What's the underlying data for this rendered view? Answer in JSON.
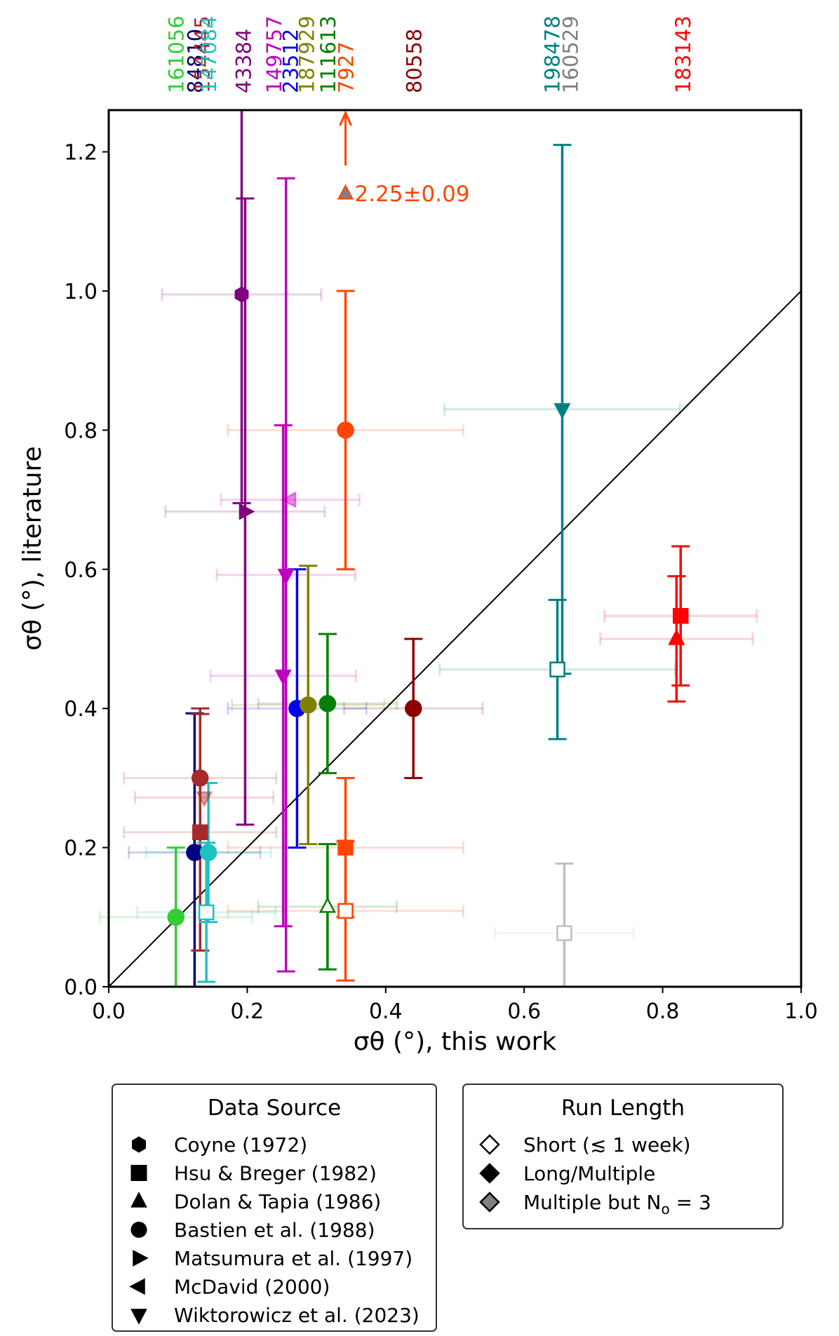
{
  "chart_data": {
    "type": "scatter",
    "xlabel": "σθ (°), this work",
    "ylabel": "σθ (°), literature",
    "xlim": [
      0.0,
      1.0
    ],
    "ylim": [
      0.0,
      1.26
    ],
    "xticks": [
      "0.0",
      "0.2",
      "0.4",
      "0.6",
      "0.8",
      "1.0"
    ],
    "yticks": [
      "0.0",
      "0.2",
      "0.4",
      "0.6",
      "0.8",
      "1.0",
      "1.2"
    ],
    "identity_line": true,
    "top_labels": [
      {
        "text": "161056",
        "x": 0.097,
        "color": "#32cd32"
      },
      {
        "text": "84810",
        "x": 0.124,
        "color": "#000080"
      },
      {
        "text": "154445",
        "x": 0.134,
        "color": "#a52a2a"
      },
      {
        "text": "147084",
        "x": 0.144,
        "color": "#20c0c0"
      },
      {
        "text": "43384",
        "x": 0.194,
        "color": "#800080"
      },
      {
        "text": "149757",
        "x": 0.238,
        "color": "#c000c0"
      },
      {
        "text": "23512",
        "x": 0.262,
        "color": "#0000ee"
      },
      {
        "text": "187929",
        "x": 0.285,
        "color": "#808000"
      },
      {
        "text": "111613",
        "x": 0.316,
        "color": "#008000"
      },
      {
        "text": "7927",
        "x": 0.342,
        "color": "#ff4500"
      },
      {
        "text": "80558",
        "x": 0.44,
        "color": "#8b0000"
      },
      {
        "text": "198478",
        "x": 0.64,
        "color": "#008080"
      },
      {
        "text": "160529",
        "x": 0.666,
        "color": "#808080"
      },
      {
        "text": "183143",
        "x": 0.829,
        "color": "#ff0000"
      }
    ],
    "points": [
      {
        "star": "161056",
        "x": 0.097,
        "y": 0.1,
        "yerr": 0.1,
        "xerr": 0.11,
        "marker": "circle",
        "fill": "full",
        "color": "#32cd32"
      },
      {
        "star": "84810",
        "x": 0.124,
        "y": 0.193,
        "yerr": 0.2,
        "xerr": 0.095,
        "marker": "circle",
        "fill": "full",
        "color": "#000080"
      },
      {
        "star": "154445",
        "x": 0.132,
        "y": 0.3,
        "yerr": 0.1,
        "xerr": 0.11,
        "marker": "circle",
        "fill": "full",
        "color": "#a52a2a"
      },
      {
        "star": "154445",
        "x": 0.132,
        "y": 0.222,
        "yerr": 0.17,
        "xerr": 0.11,
        "marker": "square",
        "fill": "full",
        "color": "#a52a2a"
      },
      {
        "star": "154445",
        "x": 0.138,
        "y": 0.272,
        "yerr": 0.0,
        "xerr": 0.1,
        "marker": "triangle-down",
        "fill": "half",
        "color": "#a52a2a"
      },
      {
        "star": "147084",
        "x": 0.144,
        "y": 0.193,
        "yerr": 0.1,
        "xerr": 0.09,
        "marker": "circle",
        "fill": "full",
        "color": "#20c0c0"
      },
      {
        "star": "147084",
        "x": 0.141,
        "y": 0.107,
        "yerr": 0.1,
        "xerr": 0.1,
        "marker": "square",
        "fill": "open",
        "color": "#20c0c0"
      },
      {
        "star": "43384",
        "x": 0.192,
        "y": 0.995,
        "yerr": 0.3,
        "xerr": 0.115,
        "marker": "hexagon",
        "fill": "full",
        "color": "#800080"
      },
      {
        "star": "43384",
        "x": 0.197,
        "y": 0.683,
        "yerr": 0.45,
        "xerr": 0.115,
        "marker": "triangle-right",
        "fill": "full",
        "color": "#800080"
      },
      {
        "star": "149757",
        "x": 0.256,
        "y": 0.592,
        "yerr": 0.57,
        "xerr": 0.1,
        "marker": "triangle-down",
        "fill": "full",
        "color": "#c000c0"
      },
      {
        "star": "149757",
        "x": 0.252,
        "y": 0.447,
        "yerr": 0.36,
        "xerr": 0.105,
        "marker": "triangle-down",
        "fill": "full",
        "color": "#c000c0"
      },
      {
        "star": "149757",
        "x": 0.262,
        "y": 0.7,
        "yerr": 0.0,
        "xerr": 0.1,
        "marker": "triangle-left",
        "fill": "half",
        "color": "#c000c0"
      },
      {
        "star": "23512",
        "x": 0.272,
        "y": 0.4,
        "yerr": 0.2,
        "xerr": 0.1,
        "marker": "circle",
        "fill": "full",
        "color": "#0000ee"
      },
      {
        "star": "187929",
        "x": 0.288,
        "y": 0.405,
        "yerr": 0.2,
        "xerr": 0.11,
        "marker": "circle",
        "fill": "full",
        "color": "#808000"
      },
      {
        "star": "111613",
        "x": 0.316,
        "y": 0.407,
        "yerr": 0.1,
        "xerr": 0.1,
        "marker": "circle",
        "fill": "full",
        "color": "#008000"
      },
      {
        "star": "111613",
        "x": 0.316,
        "y": 0.115,
        "yerr": 0.09,
        "xerr": 0.1,
        "marker": "triangle-up",
        "fill": "open",
        "color": "#008000"
      },
      {
        "star": "7927",
        "x": 0.342,
        "y": 0.8,
        "yerr": 0.2,
        "xerr": 0.17,
        "marker": "circle",
        "fill": "full",
        "color": "#ff4500"
      },
      {
        "star": "7927",
        "x": 0.342,
        "y": 0.2,
        "yerr": 0.1,
        "xerr": 0.17,
        "marker": "square",
        "fill": "full",
        "color": "#ff4500"
      },
      {
        "star": "7927",
        "x": 0.342,
        "y": 0.109,
        "yerr": 0.1,
        "xerr": 0.17,
        "marker": "square",
        "fill": "open",
        "color": "#ff4500"
      },
      {
        "star": "80558",
        "x": 0.44,
        "y": 0.4,
        "yerr": 0.1,
        "xerr": 0.1,
        "marker": "circle",
        "fill": "full",
        "color": "#8b0000"
      },
      {
        "star": "198478",
        "x": 0.655,
        "y": 0.83,
        "yerr": 0.38,
        "xerr": 0.17,
        "marker": "triangle-down",
        "fill": "full",
        "color": "#008080"
      },
      {
        "star": "198478",
        "x": 0.648,
        "y": 0.456,
        "yerr": 0.1,
        "xerr": 0.17,
        "marker": "square",
        "fill": "open",
        "color": "#008080"
      },
      {
        "star": "160529",
        "x": 0.658,
        "y": 0.077,
        "yerr": 0.1,
        "xerr": 0.1,
        "marker": "square",
        "fill": "open",
        "color": "#c0c0c0"
      },
      {
        "star": "183143",
        "x": 0.826,
        "y": 0.533,
        "yerr": 0.1,
        "xerr": 0.11,
        "marker": "square",
        "fill": "full",
        "color": "#ff0000"
      },
      {
        "star": "183143",
        "x": 0.82,
        "y": 0.5,
        "yerr": 0.09,
        "xerr": 0.11,
        "marker": "triangle-up",
        "fill": "full",
        "color": "#ff0000"
      }
    ],
    "offscale": {
      "star": "7927",
      "x": 0.342,
      "y": 1.14,
      "label": "2.25±0.09",
      "color": "#ff4500",
      "marker_fill": "#808080"
    },
    "legend_source": {
      "title": "Data Source",
      "entries": [
        {
          "label": "Coyne (1972)",
          "marker": "hexagon"
        },
        {
          "label": "Hsu & Breger (1982)",
          "marker": "square"
        },
        {
          "label": "Dolan & Tapia (1986)",
          "marker": "triangle-up"
        },
        {
          "label": "Bastien et al. (1988)",
          "marker": "circle"
        },
        {
          "label": "Matsumura et al. (1997)",
          "marker": "triangle-right"
        },
        {
          "label": "McDavid (2000)",
          "marker": "triangle-left"
        },
        {
          "label": "Wiktorowicz et al. (2023)",
          "marker": "triangle-down"
        }
      ]
    },
    "legend_runlength": {
      "title": "Run Length",
      "entries": [
        {
          "label": "Short (≲ 1 week)",
          "fill": "#ffffff"
        },
        {
          "label": "Long/Multiple",
          "fill": "#000000"
        },
        {
          "label": "Multiple but N",
          "sub": "o",
          "suffix": " = 3",
          "fill": "#808080"
        }
      ]
    }
  }
}
